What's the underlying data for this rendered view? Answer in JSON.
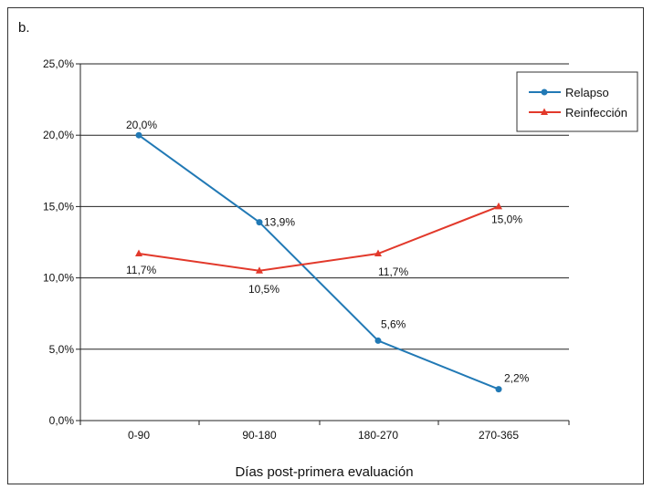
{
  "panel_label": "b.",
  "chart_data": {
    "type": "line",
    "title": "",
    "xlabel": "Días post-primera evaluación",
    "ylabel": "",
    "categories": [
      "0-90",
      "90-180",
      "180-270",
      "270-365"
    ],
    "ylim": [
      0,
      25
    ],
    "yticks": [
      "0,0%",
      "5,0%",
      "10,0%",
      "15,0%",
      "20,0%",
      "25,0%"
    ],
    "ytick_values": [
      0,
      5,
      10,
      15,
      20,
      25
    ],
    "grid": true,
    "legend_position": "top-right",
    "series": [
      {
        "name": "Relapso",
        "values": [
          20.0,
          13.9,
          5.6,
          2.2
        ],
        "labels": [
          "20,0%",
          "13,9%",
          "5,6%",
          "2,2%"
        ],
        "color": "#2179b5",
        "marker": "circle"
      },
      {
        "name": "Reinfección",
        "values": [
          11.7,
          10.5,
          11.7,
          15.0
        ],
        "labels": [
          "11,7%",
          "10,5%",
          "11,7%",
          "15,0%"
        ],
        "color": "#e2392b",
        "marker": "triangle"
      }
    ]
  }
}
